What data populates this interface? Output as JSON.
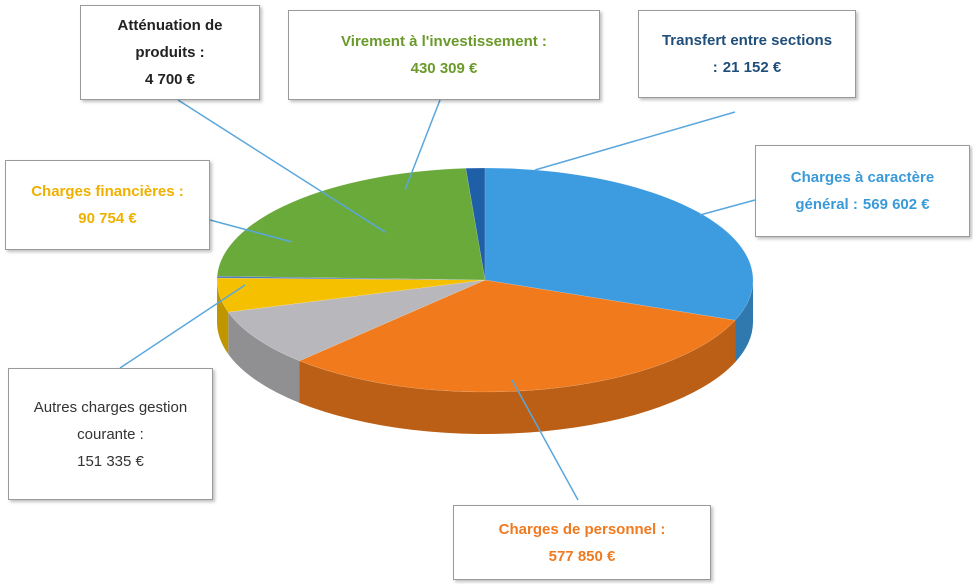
{
  "chart_data": {
    "type": "pie3d",
    "categories": [
      "Transfert entre sections :",
      "Charges à caractère général :",
      "Charges de personnel :",
      "Autres charges gestion courante :",
      "Charges financières :",
      "Atténuation de produits :",
      "Virement à l'investissement :"
    ],
    "values": [
      21152,
      569602,
      577850,
      151335,
      90754,
      4700,
      430309
    ],
    "value_labels": [
      "21 152 €",
      "569 602 €",
      "577 850 €",
      "151 335 €",
      "90 754 €",
      "4 700 €",
      "430 309 €"
    ],
    "colors": [
      "#1f5fa8",
      "#3d9be0",
      "#f07a1c",
      "#b8b8bc",
      "#f5c000",
      "#4a78c0",
      "#6aaa3a"
    ]
  }
}
